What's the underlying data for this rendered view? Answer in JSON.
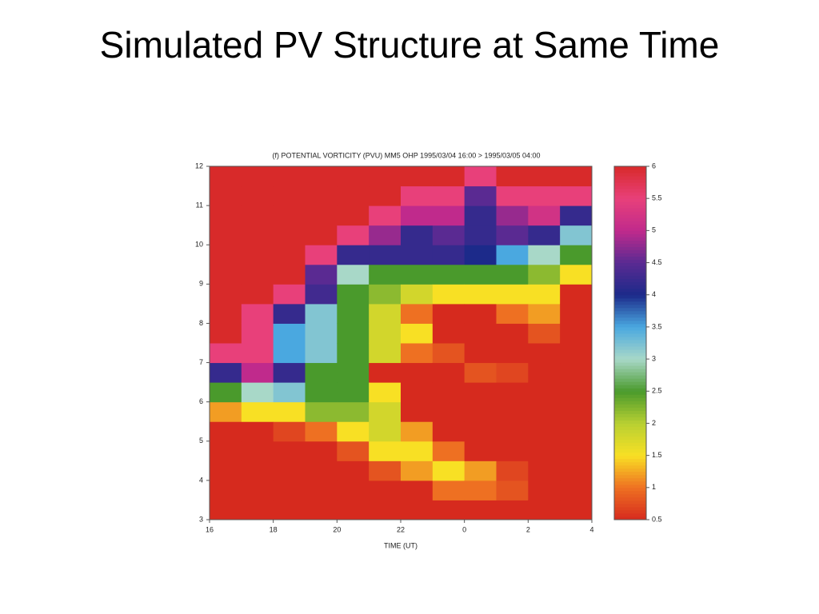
{
  "slide_title": "Simulated PV Structure at Same Time",
  "chart_data": {
    "type": "heatmap",
    "title": "(f) POTENTIAL VORTICITY (PVU)  MM5 OHP 1995/03/04 16:00 > 1995/03/05 04:00",
    "x_label": "TIME (UT)",
    "x_bins": [
      16,
      17,
      18,
      19,
      20,
      21,
      22,
      23,
      24,
      25,
      26,
      27,
      28
    ],
    "y_bins": [
      3,
      3.5,
      4,
      4.5,
      5,
      5.5,
      6,
      6.5,
      7,
      7.5,
      8,
      8.5,
      9,
      9.5,
      10,
      10.5,
      11,
      11.5,
      12
    ],
    "values": [
      [
        0.5,
        0.5,
        0.5,
        0.5,
        0.5,
        1.2,
        2.5,
        4.2,
        5.5,
        6,
        6,
        6,
        6,
        6,
        6,
        6,
        6,
        6
      ],
      [
        0.5,
        0.5,
        0.5,
        0.5,
        0.5,
        1.5,
        3,
        5,
        5.5,
        5.5,
        5.5,
        6,
        6,
        6,
        6,
        6,
        6,
        6
      ],
      [
        0.5,
        0.5,
        0.5,
        0.5,
        0.7,
        1.5,
        3.2,
        4.2,
        3.5,
        3.5,
        4.2,
        5.5,
        6,
        6,
        6,
        6,
        6,
        6
      ],
      [
        0.5,
        0.5,
        0.5,
        0.5,
        1.0,
        2.2,
        2.5,
        2.5,
        3.2,
        3.2,
        3.2,
        4.3,
        4.5,
        5.5,
        6,
        6,
        6,
        6
      ],
      [
        0.5,
        0.5,
        0.5,
        0.8,
        1.5,
        2.2,
        2.5,
        2.5,
        2.5,
        2.5,
        2.5,
        2.5,
        3,
        4.2,
        5.5,
        6,
        6,
        6
      ],
      [
        0.5,
        0.5,
        0.8,
        1.5,
        1.8,
        1.8,
        1.5,
        0.5,
        1.8,
        1.8,
        1.8,
        2.2,
        2.5,
        4.2,
        4.8,
        5.5,
        6,
        6
      ],
      [
        0.5,
        0.5,
        1.2,
        1.5,
        1.2,
        0.5,
        0.5,
        0.5,
        1.0,
        1.5,
        1.0,
        1.8,
        2.5,
        4.2,
        4.2,
        5,
        5.5,
        6
      ],
      [
        0.5,
        1.0,
        1.5,
        1.0,
        0.5,
        0.5,
        0.5,
        0.5,
        0.8,
        0.5,
        0.5,
        1.5,
        2.5,
        4.2,
        4.5,
        5,
        5.5,
        6
      ],
      [
        0.5,
        1.0,
        1.2,
        0.5,
        0.5,
        0.5,
        0.5,
        0.8,
        0.5,
        0.5,
        0.5,
        1.5,
        2.5,
        4,
        4.2,
        4.2,
        4.5,
        5.5
      ],
      [
        0.5,
        0.8,
        0.7,
        0.5,
        0.5,
        0.5,
        0.5,
        0.7,
        0.5,
        0.5,
        1.0,
        1.5,
        2.5,
        3.5,
        4.5,
        4.8,
        5.5,
        6
      ],
      [
        0.5,
        0.5,
        0.5,
        0.5,
        0.5,
        0.5,
        0.5,
        0.5,
        0.5,
        0.8,
        1.2,
        1.5,
        2.2,
        3,
        4.2,
        5.2,
        5.5,
        6
      ],
      [
        0.5,
        0.5,
        0.5,
        0.5,
        0.5,
        0.5,
        0.5,
        0.5,
        0.5,
        0.5,
        0.5,
        0.5,
        1.5,
        2.5,
        3.2,
        4.2,
        5.5,
        6
      ]
    ],
    "xlim": [
      16,
      28
    ],
    "xticks": [
      16,
      18,
      20,
      22,
      {
        "value": 24,
        "label": "0"
      },
      {
        "value": 26,
        "label": "2"
      },
      {
        "value": 28,
        "label": "4"
      }
    ],
    "ylim": [
      3,
      12
    ],
    "yticks": [
      3,
      4,
      5,
      6,
      7,
      8,
      9,
      10,
      11,
      12
    ],
    "clim": [
      0.5,
      6
    ],
    "cticks": [
      0.5,
      1,
      1.5,
      2,
      2.5,
      3,
      3.5,
      4,
      4.5,
      5,
      5.5,
      6
    ],
    "colorscale": [
      [
        0.5,
        "#d62a1e"
      ],
      [
        1,
        "#ee7022"
      ],
      [
        1.5,
        "#f8e024"
      ],
      [
        2,
        "#b8d032"
      ],
      [
        2.5,
        "#4a9a2c"
      ],
      [
        3,
        "#a8d8c8"
      ],
      [
        3.5,
        "#4aa8e0"
      ],
      [
        4,
        "#1c2a8a"
      ],
      [
        4.5,
        "#5a2a92"
      ],
      [
        5,
        "#c02a8c"
      ],
      [
        5.5,
        "#e8407a"
      ],
      [
        6,
        "#d82a2a"
      ]
    ]
  }
}
